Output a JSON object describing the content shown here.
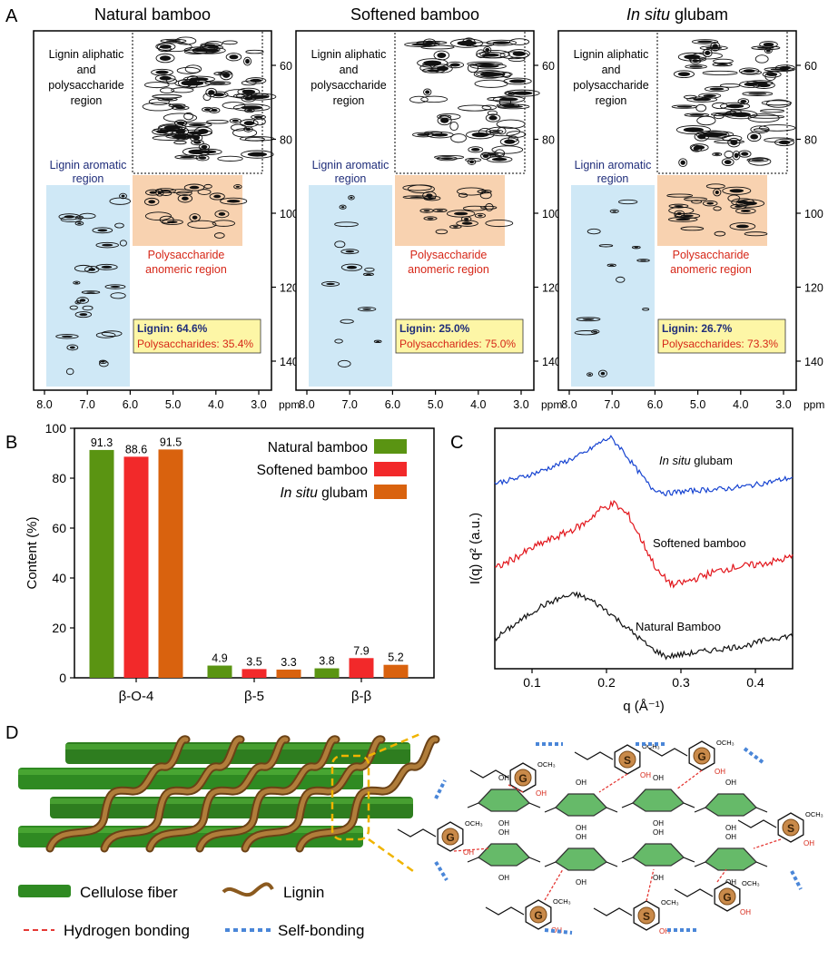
{
  "panel_letters": {
    "a": "A",
    "b": "B",
    "c": "C",
    "d": "D"
  },
  "colors": {
    "aromatic_region": "#cfe8f6",
    "anomeric_region": "#f8d2b0",
    "info_box": "#fdf6a6",
    "lignin_label": "#1f2d7a",
    "polysaccharide_label": "#d62718",
    "natural": "#5a9412",
    "softened": "#f2292a",
    "glubam": "#d9620e",
    "saxs_glubam": "#1744d1",
    "saxs_softened": "#e2151b",
    "saxs_natural": "#111111",
    "cellulose": "#2e7d1f",
    "lignin_ribbon": "#8b5a1f",
    "hbond": "#e53935",
    "selfbond": "#4a86d8"
  },
  "nmr_panels": [
    {
      "title": "Natural bamboo",
      "title_italic_part": "",
      "aliphatic_label": [
        "Lignin aliphatic",
        "and",
        "polysaccharide",
        "region"
      ],
      "aromatic_label": [
        "Lignin aromatic",
        "region"
      ],
      "anomeric_label": [
        "Polysaccharide",
        "anomeric region"
      ],
      "lignin_text": "Lignin: 64.6%",
      "polysaccharide_text": "Polysaccharides: 35.4%",
      "x_ticks": [
        "8.0",
        "7.0",
        "6.0",
        "5.0",
        "4.0",
        "3.0"
      ],
      "x_unit": "ppm",
      "y_ticks": [
        "60",
        "80",
        "100",
        "120",
        "140"
      ],
      "y_unit": "ppm"
    },
    {
      "title": "Softened bamboo",
      "title_italic_part": "",
      "aliphatic_label": [
        "Lignin aliphatic",
        "and",
        "polysaccharide",
        "region"
      ],
      "aromatic_label": [
        "Lignin aromatic",
        "region"
      ],
      "anomeric_label": [
        "Polysaccharide",
        "anomeric region"
      ],
      "lignin_text": "Lignin: 25.0%",
      "polysaccharide_text": "Polysaccharides: 75.0%",
      "x_ticks": [
        "8.0",
        "7.0",
        "6.0",
        "5.0",
        "4.0",
        "3.0"
      ],
      "x_unit": "ppm",
      "y_ticks": [
        "60",
        "80",
        "100",
        "120",
        "140"
      ],
      "y_unit": "ppm"
    },
    {
      "title": "glubam",
      "title_italic_part": "In situ",
      "aliphatic_label": [
        "Lignin aliphatic",
        "and",
        "polysaccharide",
        "region"
      ],
      "aromatic_label": [
        "Lignin aromatic",
        "region"
      ],
      "anomeric_label": [
        "Polysaccharide",
        "anomeric region"
      ],
      "lignin_text": "Lignin: 26.7%",
      "polysaccharide_text": "Polysaccharides: 73.3%",
      "x_ticks": [
        "8.0",
        "7.0",
        "6.0",
        "5.0",
        "4.0",
        "3.0"
      ],
      "x_unit": "ppm",
      "y_ticks": [
        "60",
        "80",
        "100",
        "120",
        "140"
      ],
      "y_unit": "ppm"
    }
  ],
  "chart_data": [
    {
      "type": "bar",
      "panel": "B",
      "title": "",
      "xlabel": "",
      "ylabel": "Content (%)",
      "ylim": [
        0,
        100
      ],
      "y_ticks": [
        0,
        20,
        40,
        60,
        80,
        100
      ],
      "categories": [
        "β-O-4",
        "β-5",
        "β-β"
      ],
      "legend_position": "top-right",
      "series": [
        {
          "name": "Natural bamboo",
          "name_italic_part": "",
          "values": [
            91.3,
            4.9,
            3.8
          ],
          "value_labels": [
            "91.3",
            "4.9",
            "3.8"
          ]
        },
        {
          "name": "Softened bamboo",
          "name_italic_part": "",
          "values": [
            88.6,
            3.5,
            7.9
          ],
          "value_labels": [
            "88.6",
            "3.5",
            "7.9"
          ]
        },
        {
          "name": "glubam",
          "name_italic_part": "In situ",
          "values": [
            91.5,
            3.3,
            5.2
          ],
          "value_labels": [
            "91.5",
            "3.3",
            "5.2"
          ]
        }
      ]
    },
    {
      "type": "line",
      "panel": "C",
      "title": "",
      "xlabel": "q (Å⁻¹)",
      "ylabel": "I(q) q² (a.u.)",
      "xlim": [
        0.05,
        0.45
      ],
      "x_ticks": [
        "0.1",
        "0.2",
        "0.3",
        "0.4"
      ],
      "x_tick_values": [
        0.1,
        0.2,
        0.3,
        0.4
      ],
      "y_ticks": [],
      "series": [
        {
          "name": "glubam",
          "name_italic_part": "In situ",
          "label": "In situ glubam",
          "x": [
            0.05,
            0.08,
            0.11,
            0.14,
            0.17,
            0.19,
            0.205,
            0.22,
            0.24,
            0.26,
            0.28,
            0.3,
            0.33,
            0.36,
            0.39,
            0.42,
            0.45
          ],
          "y": [
            0.2,
            0.28,
            0.4,
            0.55,
            0.72,
            0.9,
            1.0,
            0.8,
            0.45,
            0.12,
            0.02,
            0.05,
            0.08,
            0.1,
            0.15,
            0.22,
            0.3
          ]
        },
        {
          "name": "Softened bamboo",
          "name_italic_part": "",
          "label": "Softened bamboo",
          "x": [
            0.05,
            0.08,
            0.11,
            0.14,
            0.17,
            0.19,
            0.21,
            0.23,
            0.25,
            0.27,
            0.29,
            0.31,
            0.34,
            0.37,
            0.4,
            0.43,
            0.45
          ],
          "y": [
            0.2,
            0.35,
            0.5,
            0.62,
            0.75,
            0.92,
            1.0,
            0.85,
            0.5,
            0.15,
            0.0,
            0.05,
            0.15,
            0.22,
            0.25,
            0.3,
            0.35
          ]
        },
        {
          "name": "Natural Bamboo",
          "name_italic_part": "",
          "label": "Natural Bamboo",
          "x": [
            0.05,
            0.08,
            0.11,
            0.14,
            0.16,
            0.18,
            0.2,
            0.22,
            0.24,
            0.26,
            0.28,
            0.3,
            0.33,
            0.36,
            0.39,
            0.42,
            0.45
          ],
          "y": [
            0.3,
            0.55,
            0.8,
            0.95,
            1.0,
            0.9,
            0.75,
            0.55,
            0.35,
            0.15,
            0.02,
            0.05,
            0.1,
            0.15,
            0.2,
            0.3,
            0.35
          ]
        }
      ]
    }
  ],
  "panel_d": {
    "legend": [
      {
        "key": "cellulose",
        "label": "Cellulose fiber"
      },
      {
        "key": "lignin",
        "label": "Lignin"
      },
      {
        "key": "hbond",
        "label": "Hydrogen bonding"
      },
      {
        "key": "selfbond",
        "label": "Self-bonding"
      }
    ],
    "ring_labels": [
      "G",
      "S",
      "G",
      "G",
      "S",
      "G",
      "S",
      "G"
    ],
    "oh_label": "OH",
    "och3_label": "OCH₃"
  }
}
